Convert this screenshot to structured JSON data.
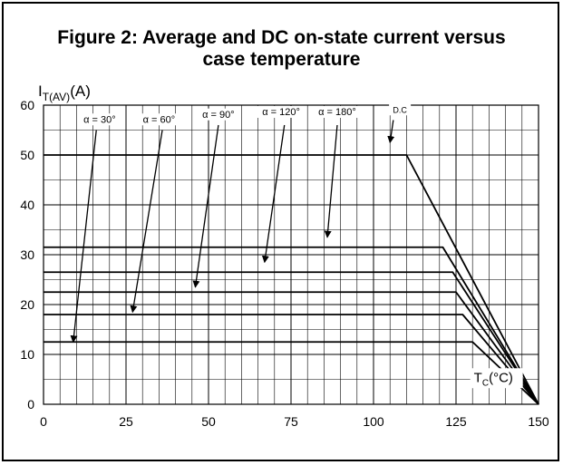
{
  "chart_data": {
    "type": "line",
    "title_line1": "Figure 2: Average and DC on-state current versus",
    "title_line2": "case temperature",
    "ylabel_main": "I",
    "ylabel_sub": "T(AV)",
    "ylabel_unit": "(A)",
    "xlabel_main": "T",
    "xlabel_sub": "C",
    "xlabel_unit": "(°C)",
    "xlim": [
      0,
      150
    ],
    "ylim": [
      0,
      60
    ],
    "x_ticks": [
      0,
      25,
      50,
      75,
      100,
      125,
      150
    ],
    "y_ticks": [
      0,
      10,
      20,
      30,
      40,
      50,
      60
    ],
    "grid": true,
    "series": [
      {
        "name": "α = 30°",
        "x": [
          0,
          130,
          150
        ],
        "y": [
          12.5,
          12.5,
          0
        ]
      },
      {
        "name": "α = 60°",
        "x": [
          0,
          127,
          150
        ],
        "y": [
          18,
          18,
          0
        ]
      },
      {
        "name": "α = 90°",
        "x": [
          0,
          125,
          150
        ],
        "y": [
          22.5,
          22.5,
          0
        ]
      },
      {
        "name": "α = 120°",
        "x": [
          0,
          124,
          150
        ],
        "y": [
          26.5,
          26.5,
          0
        ]
      },
      {
        "name": "α = 180°",
        "x": [
          0,
          121,
          150
        ],
        "y": [
          31.5,
          31.5,
          0
        ]
      },
      {
        "name": "D.C",
        "x": [
          0,
          110,
          150
        ],
        "y": [
          50,
          50,
          0
        ]
      }
    ],
    "annotations": [
      {
        "text": "α = 30°",
        "label_x": 17,
        "label_y": 56.5,
        "arrow_from": [
          16,
          55
        ],
        "arrow_to": [
          9,
          12.5
        ]
      },
      {
        "text": "α = 60°",
        "label_x": 35,
        "label_y": 56.5,
        "arrow_from": [
          36,
          55
        ],
        "arrow_to": [
          27,
          18.5
        ]
      },
      {
        "text": "α = 90°",
        "label_x": 53,
        "label_y": 57.5,
        "arrow_from": [
          53,
          56
        ],
        "arrow_to": [
          46,
          23.5
        ]
      },
      {
        "text": "α = 120°",
        "label_x": 72,
        "label_y": 58,
        "arrow_from": [
          73,
          56
        ],
        "arrow_to": [
          67,
          28.5
        ]
      },
      {
        "text": "α = 180°",
        "label_x": 89,
        "label_y": 58,
        "arrow_from": [
          89,
          56
        ],
        "arrow_to": [
          86,
          33.5
        ]
      },
      {
        "text": "D.C",
        "label_x": 108,
        "label_y": 58.5,
        "arrow_from": [
          106,
          57
        ],
        "arrow_to": [
          105,
          52.5
        ]
      }
    ]
  }
}
